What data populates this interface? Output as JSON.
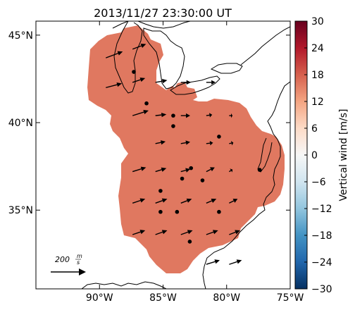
{
  "title": "2013/11/27 23:30:00 UT",
  "map": {
    "lon_range": [
      -95,
      -75
    ],
    "lat_range": [
      30.5,
      45.8
    ],
    "lon_ticks": [
      {
        "value": -90,
        "label": "90°W"
      },
      {
        "value": -85,
        "label": "85°W"
      },
      {
        "value": -80,
        "label": "80°W"
      },
      {
        "value": -75,
        "label": "75°W"
      }
    ],
    "lat_ticks": [
      {
        "value": 35,
        "label": "35°N"
      },
      {
        "value": 40,
        "label": "40°N"
      },
      {
        "value": 45,
        "label": "45°N"
      }
    ],
    "field_color": "#e07860",
    "reference_arrow": {
      "label_num": "200",
      "label_num_unit": "m",
      "label_den_unit": "s"
    },
    "stations": [
      [
        -87.3,
        42.9
      ],
      [
        -86.3,
        41.1
      ],
      [
        -84.2,
        40.4
      ],
      [
        -84.2,
        39.8
      ],
      [
        -80.6,
        39.2
      ],
      [
        -82.8,
        37.4
      ],
      [
        -83.5,
        36.8
      ],
      [
        -81.9,
        36.7
      ],
      [
        -77.4,
        37.3
      ],
      [
        -85.2,
        36.1
      ],
      [
        -85.2,
        34.9
      ],
      [
        -83.9,
        34.9
      ],
      [
        -80.6,
        34.9
      ],
      [
        -82.9,
        33.2
      ]
    ],
    "wind_vectors": [
      [
        -89.5,
        43.7,
        40,
        15
      ],
      [
        -87.4,
        44.2,
        32,
        12
      ],
      [
        -89.5,
        42.0,
        38,
        10
      ],
      [
        -87.4,
        42.3,
        30,
        10
      ],
      [
        -85.6,
        42.3,
        28,
        5
      ],
      [
        -83.6,
        42.3,
        24,
        0
      ],
      [
        -81.6,
        42.3,
        22,
        0
      ],
      [
        -87.4,
        40.4,
        38,
        12
      ],
      [
        -85.6,
        40.4,
        26,
        3
      ],
      [
        -83.6,
        40.4,
        22,
        0
      ],
      [
        -81.6,
        40.4,
        14,
        2
      ],
      [
        -79.8,
        40.4,
        8,
        0
      ],
      [
        -85.6,
        38.8,
        24,
        5
      ],
      [
        -83.6,
        38.8,
        22,
        4
      ],
      [
        -81.6,
        38.8,
        16,
        2
      ],
      [
        -79.8,
        38.8,
        10,
        2
      ],
      [
        -87.4,
        37.2,
        32,
        10
      ],
      [
        -85.6,
        37.2,
        26,
        8
      ],
      [
        -83.6,
        37.2,
        22,
        6
      ],
      [
        -81.6,
        37.2,
        20,
        10
      ],
      [
        -79.8,
        37.2,
        8,
        5
      ],
      [
        -87.4,
        35.4,
        30,
        10
      ],
      [
        -85.6,
        35.4,
        28,
        10
      ],
      [
        -83.6,
        35.4,
        26,
        10
      ],
      [
        -81.6,
        35.4,
        24,
        10
      ],
      [
        -79.8,
        35.4,
        20,
        10
      ],
      [
        -87.4,
        33.6,
        30,
        10
      ],
      [
        -85.6,
        33.6,
        28,
        10
      ],
      [
        -83.6,
        33.6,
        28,
        10
      ],
      [
        -81.6,
        33.6,
        28,
        10
      ],
      [
        -79.8,
        33.6,
        26,
        10
      ],
      [
        -81.6,
        31.9,
        32,
        10
      ],
      [
        -79.8,
        31.9,
        30,
        10
      ]
    ]
  },
  "colorbar": {
    "label": "Vertical wind [m/s]",
    "vmin": -30,
    "vmax": 30,
    "ticks": [
      {
        "value": 30,
        "label": "30"
      },
      {
        "value": 24,
        "label": "24"
      },
      {
        "value": 18,
        "label": "18"
      },
      {
        "value": 12,
        "label": "12"
      },
      {
        "value": 6,
        "label": "6"
      },
      {
        "value": 0,
        "label": "0"
      },
      {
        "value": -6,
        "label": "−6"
      },
      {
        "value": -12,
        "label": "−12"
      },
      {
        "value": -18,
        "label": "−18"
      },
      {
        "value": -24,
        "label": "−24"
      },
      {
        "value": -30,
        "label": "−30"
      }
    ],
    "colors": [
      "#053061",
      "#2166ac",
      "#4393c3",
      "#92c5de",
      "#d1e5f0",
      "#f7f7f7",
      "#fddbc7",
      "#f4a582",
      "#d6604d",
      "#b2182b",
      "#67001f"
    ]
  }
}
